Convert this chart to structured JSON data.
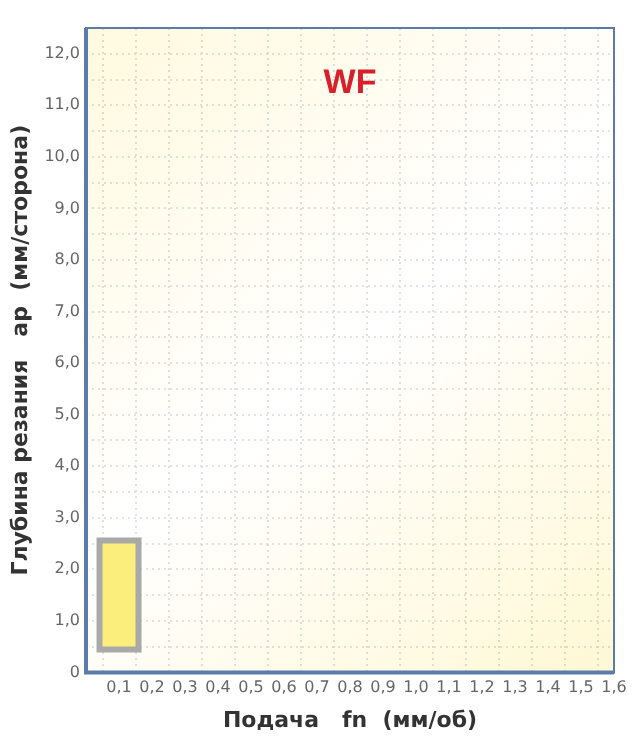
{
  "chart_data": {
    "type": "bar",
    "title": "WF",
    "xlabel": "Подача   fn  (мм/об)",
    "ylabel": "Глубина резания   ap  (мм/сторона)",
    "x": [
      0.1
    ],
    "base": [
      0.5
    ],
    "values": [
      2.0
    ],
    "color": "#fbee7c",
    "xlim": [
      0,
      1.6
    ],
    "ylim": [
      0,
      12.5
    ],
    "xticks": [
      {
        "value": 0,
        "label": null
      },
      {
        "value": 0.1,
        "label": "0,1"
      },
      {
        "value": 0.2,
        "label": "0,2"
      },
      {
        "value": 0.3,
        "label": "0,3"
      },
      {
        "value": 0.4,
        "label": "0,4"
      },
      {
        "value": 0.5,
        "label": "0,5"
      },
      {
        "value": 0.6,
        "label": "0,6"
      },
      {
        "value": 0.7,
        "label": "0,7"
      },
      {
        "value": 0.8,
        "label": "0,8"
      },
      {
        "value": 0.9,
        "label": "0,9"
      },
      {
        "value": 1.0,
        "label": "1,0"
      },
      {
        "value": 1.1,
        "label": "1,1"
      },
      {
        "value": 1.2,
        "label": "1,2"
      },
      {
        "value": 1.3,
        "label": "1,3"
      },
      {
        "value": 1.4,
        "label": "1,4"
      },
      {
        "value": 1.5,
        "label": "1,5"
      },
      {
        "value": 1.6,
        "label": "1,6"
      }
    ],
    "yticks": [
      0,
      {
        "value": 0.5,
        "label": null
      },
      {
        "value": 1,
        "label": "1,0"
      },
      {
        "value": 1.5,
        "label": null
      },
      {
        "value": 2,
        "label": "2,0"
      },
      {
        "value": 2.5,
        "label": null
      },
      {
        "value": 3,
        "label": "3,0"
      },
      {
        "value": 3.5,
        "label": null
      },
      {
        "value": 4,
        "label": "4,0"
      },
      {
        "value": 4.5,
        "label": null
      },
      {
        "value": 5,
        "label": "5,0"
      },
      {
        "value": 5.5,
        "label": null
      },
      {
        "value": 6,
        "label": "6,0"
      },
      {
        "value": 6.5,
        "label": null
      },
      {
        "value": 7,
        "label": "7,0"
      },
      {
        "value": 7.5,
        "label": null
      },
      {
        "value": 8,
        "label": "8,0"
      },
      {
        "value": 8.5,
        "label": null
      },
      {
        "value": 9,
        "label": "9,0"
      },
      {
        "value": 9.5,
        "label": null
      },
      {
        "value": 10,
        "label": "10,0"
      },
      {
        "value": 10.5,
        "label": null
      },
      {
        "value": 11,
        "label": "11,0"
      },
      {
        "value": 11.5,
        "label": null
      },
      {
        "value": 12,
        "label": "12,0"
      }
    ],
    "grid": true
  }
}
